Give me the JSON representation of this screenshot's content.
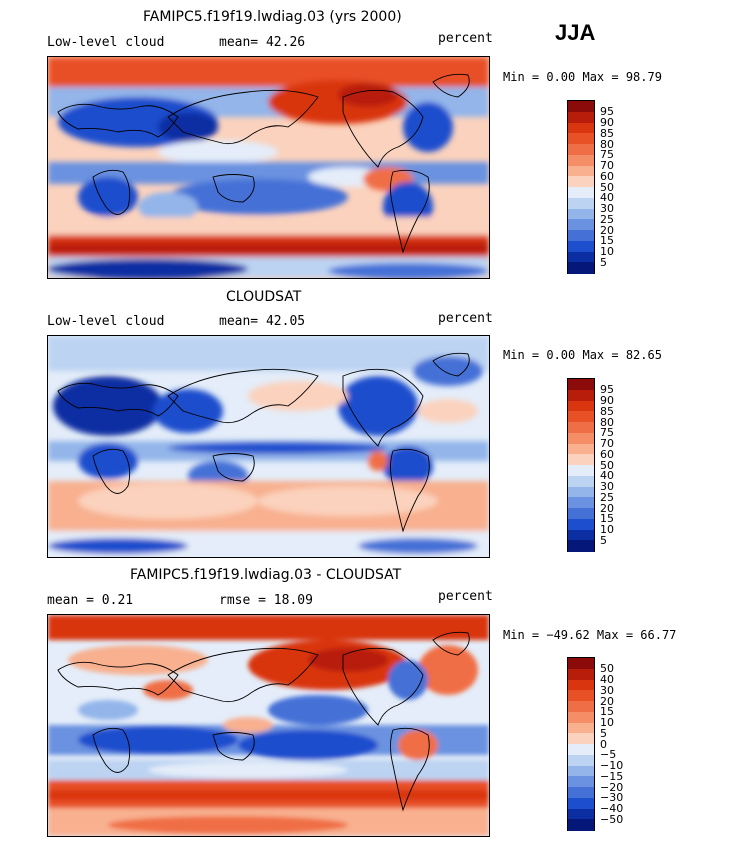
{
  "season": "JJA",
  "panels": [
    {
      "id": "model",
      "title": "FAMIPC5.f19f19.lwdiag.03 (yrs 2000)",
      "left_label": "Low-level cloud",
      "mid_label": "mean=  42.26",
      "right_label": "percent",
      "minmax": "Min =   0.00 Max =  98.79",
      "colorbar": {
        "levels": [
          "95",
          "90",
          "85",
          "80",
          "75",
          "70",
          "60",
          "50",
          "40",
          "30",
          "25",
          "20",
          "15",
          "10",
          "5"
        ],
        "colors": [
          "#8b0a0a",
          "#b81d0c",
          "#d9350f",
          "#e85026",
          "#f06e45",
          "#f58e67",
          "#f8b08f",
          "#fbd2bd",
          "#e4edf9",
          "#bcd3f2",
          "#93b5ea",
          "#6b92e0",
          "#4571d7",
          "#1c4ecd",
          "#0b2ea3",
          "#06177a"
        ]
      }
    },
    {
      "id": "obs",
      "title": "CLOUDSAT",
      "left_label": "Low-level cloud",
      "mid_label": "mean=  42.05",
      "right_label": "percent",
      "minmax": "Min =   0.00 Max =  82.65",
      "colorbar": {
        "levels": [
          "95",
          "90",
          "85",
          "80",
          "75",
          "70",
          "60",
          "50",
          "40",
          "30",
          "25",
          "20",
          "15",
          "10",
          "5"
        ],
        "colors": [
          "#8b0a0a",
          "#b81d0c",
          "#d9350f",
          "#e85026",
          "#f06e45",
          "#f58e67",
          "#f8b08f",
          "#fbd2bd",
          "#e4edf9",
          "#bcd3f2",
          "#93b5ea",
          "#6b92e0",
          "#4571d7",
          "#1c4ecd",
          "#0b2ea3",
          "#06177a"
        ]
      }
    },
    {
      "id": "diff",
      "title": "FAMIPC5.f19f19.lwdiag.03 - CLOUDSAT",
      "left_label": "mean =    0.21",
      "mid_label": "rmse =   18.09",
      "right_label": "percent",
      "minmax": "Min = −49.62 Max =  66.77",
      "colorbar": {
        "levels": [
          "50",
          "40",
          "30",
          "20",
          "15",
          "10",
          "5",
          "0",
          "−5",
          "−10",
          "−15",
          "−20",
          "−30",
          "−40",
          "−50"
        ],
        "colors": [
          "#8b0a0a",
          "#b81d0c",
          "#d9350f",
          "#e85026",
          "#f06e45",
          "#f58e67",
          "#f8b08f",
          "#fbd2bd",
          "#e4edf9",
          "#bcd3f2",
          "#93b5ea",
          "#6b92e0",
          "#4571d7",
          "#1c4ecd",
          "#0b2ea3",
          "#06177a"
        ]
      }
    }
  ]
}
